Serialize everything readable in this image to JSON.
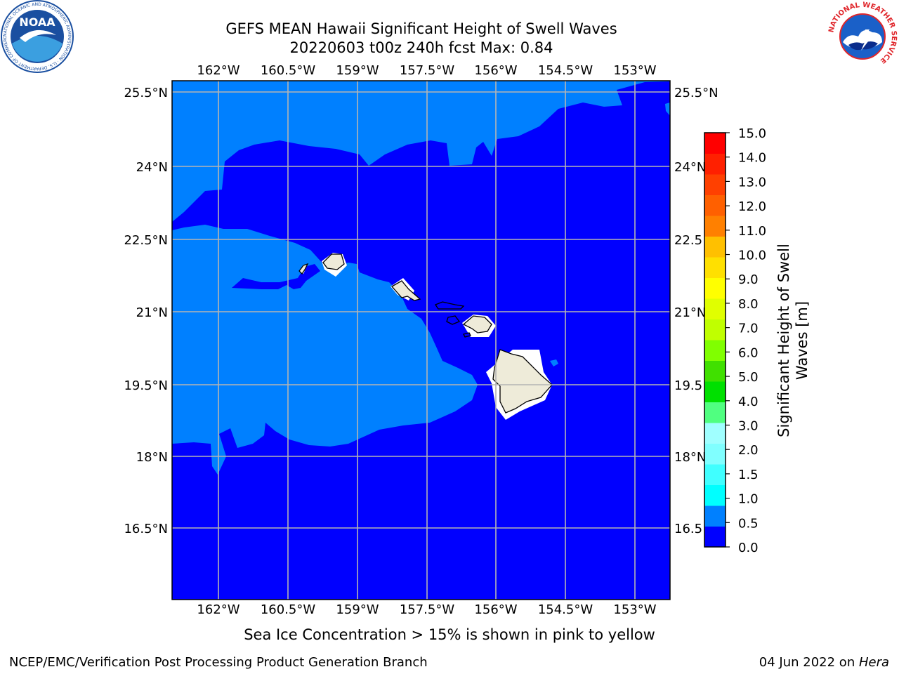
{
  "title": {
    "line1": "GEFS MEAN Hawaii Significant Height of Swell Waves",
    "line2": "20220603 t00z 240h fcst   Max: 0.84"
  },
  "logos": {
    "left": {
      "name": "noaa-logo",
      "text": "NOAA",
      "ring_text": "NATIONAL OCEANIC AND ATMOSPHERIC ADMINISTRATION · U.S. DEPARTMENT OF COMMERCE",
      "color": "#1a4fa0"
    },
    "right": {
      "name": "nws-logo",
      "ring_text": "NATIONAL WEATHER SERVICE",
      "color": "#e0262b"
    }
  },
  "map": {
    "lon_labels": [
      "162°W",
      "160.5°W",
      "159°W",
      "157.5°W",
      "156°W",
      "154.5°W",
      "153°W"
    ],
    "lat_labels": [
      "25.5°N",
      "24°N",
      "22.5°N",
      "21°N",
      "19.5°N",
      "18°N",
      "16.5°N"
    ],
    "right_lat_labels": [
      "25.5°N",
      "24°N",
      "22.5",
      "21°N",
      "19.5",
      "18°N",
      "16.5"
    ],
    "colors": {
      "deep": "#0000ff",
      "shallow": "#0080ff",
      "land": "#eeebd9",
      "grid": "#b4b4b4"
    }
  },
  "colorbar": {
    "label_line1": "Significant Height of Swell",
    "label_line2": "Waves [m]",
    "ticks": [
      "0.0",
      "0.5",
      "1.0",
      "1.5",
      "2.0",
      "3.0",
      "4.0",
      "5.0",
      "6.0",
      "7.0",
      "8.0",
      "9.0",
      "10.0",
      "11.0",
      "12.0",
      "13.0",
      "14.0",
      "15.0"
    ],
    "colors": [
      "#0000ff",
      "#0080ff",
      "#00ffff",
      "#40ffff",
      "#80ffff",
      "#a0ffff",
      "#50ff80",
      "#00e000",
      "#40e000",
      "#80ff00",
      "#c0ff00",
      "#e0ff00",
      "#ffff00",
      "#ffe000",
      "#ffc000",
      "#ff8000",
      "#ff6000",
      "#ff4000",
      "#ff2000",
      "#ff0000"
    ]
  },
  "ice_note": "Sea Ice Concentration > 15% is shown in pink to yellow",
  "footer": {
    "left": "NCEP/EMC/Verification Post Processing Product Generation Branch",
    "right_prefix": "04 Jun 2022 on ",
    "right_italic": "Hera"
  }
}
